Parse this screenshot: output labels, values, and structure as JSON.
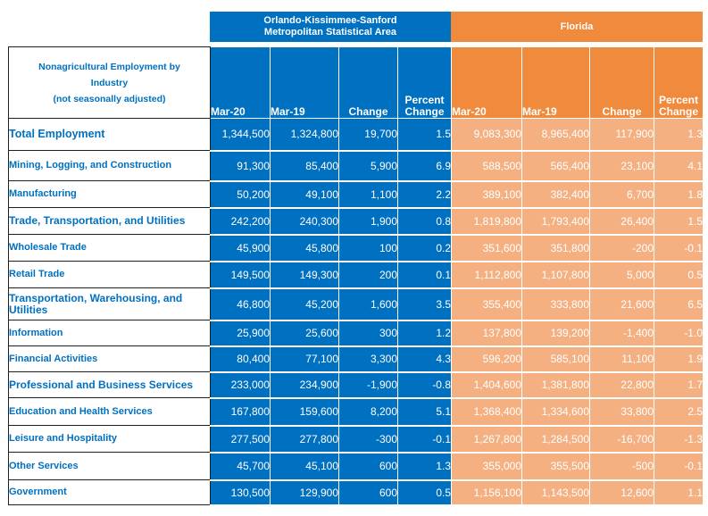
{
  "group_headers": {
    "orlando_line1": "Orlando-Kissimmee-Sanford",
    "orlando_line2": "Metropolitan Statistical Area",
    "florida": "Florida"
  },
  "table_header": {
    "label_line1": "Nonagricultural Employment by",
    "label_line2": "Industry",
    "label_line3": "(not seasonally adjusted)",
    "mar20": "Mar-20",
    "mar19": "Mar-19",
    "change": "Change",
    "percent_line1": "Percent",
    "percent_line2": "Change"
  },
  "rows": [
    {
      "label": "Total Employment",
      "o_mar20": "1,344,500",
      "o_mar19": "1,324,800",
      "o_change": "19,700",
      "o_pct": "1.5",
      "f_mar20": "9,083,300",
      "f_mar19": "8,965,400",
      "f_change": "117,900",
      "f_pct": "1.3"
    },
    {
      "label": "Mining, Logging, and Construction",
      "o_mar20": "91,300",
      "o_mar19": "85,400",
      "o_change": "5,900",
      "o_pct": "6.9",
      "f_mar20": "588,500",
      "f_mar19": "565,400",
      "f_change": "23,100",
      "f_pct": "4.1"
    },
    {
      "label": "Manufacturing",
      "o_mar20": "50,200",
      "o_mar19": "49,100",
      "o_change": "1,100",
      "o_pct": "2.2",
      "f_mar20": "389,100",
      "f_mar19": "382,400",
      "f_change": "6,700",
      "f_pct": "1.8"
    },
    {
      "label": "Trade, Transportation, and Utilities",
      "o_mar20": "242,200",
      "o_mar19": "240,300",
      "o_change": "1,900",
      "o_pct": "0.8",
      "f_mar20": "1,819,800",
      "f_mar19": "1,793,400",
      "f_change": "26,400",
      "f_pct": "1.5"
    },
    {
      "label": "Wholesale Trade",
      "o_mar20": "45,900",
      "o_mar19": "45,800",
      "o_change": "100",
      "o_pct": "0.2",
      "f_mar20": "351,600",
      "f_mar19": "351,800",
      "f_change": "-200",
      "f_pct": "-0.1"
    },
    {
      "label": "Retail Trade",
      "o_mar20": "149,500",
      "o_mar19": "149,300",
      "o_change": "200",
      "o_pct": "0.1",
      "f_mar20": "1,112,800",
      "f_mar19": "1,107,800",
      "f_change": "5,000",
      "f_pct": "0.5"
    },
    {
      "label": "Transportation, Warehousing, and Utilities",
      "o_mar20": "46,800",
      "o_mar19": "45,200",
      "o_change": "1,600",
      "o_pct": "3.5",
      "f_mar20": "355,400",
      "f_mar19": "333,800",
      "f_change": "21,600",
      "f_pct": "6.5"
    },
    {
      "label": "Information",
      "o_mar20": "25,900",
      "o_mar19": "25,600",
      "o_change": "300",
      "o_pct": "1.2",
      "f_mar20": "137,800",
      "f_mar19": "139,200",
      "f_change": "-1,400",
      "f_pct": "-1.0"
    },
    {
      "label": "Financial Activities",
      "o_mar20": "80,400",
      "o_mar19": "77,100",
      "o_change": "3,300",
      "o_pct": "4.3",
      "f_mar20": "596,200",
      "f_mar19": "585,100",
      "f_change": "11,100",
      "f_pct": "1.9"
    },
    {
      "label": "Professional and Business Services",
      "o_mar20": "233,000",
      "o_mar19": "234,900",
      "o_change": "-1,900",
      "o_pct": "-0.8",
      "f_mar20": "1,404,600",
      "f_mar19": "1,381,800",
      "f_change": "22,800",
      "f_pct": "1.7"
    },
    {
      "label": "Education and Health Services",
      "o_mar20": "167,800",
      "o_mar19": "159,600",
      "o_change": "8,200",
      "o_pct": "5.1",
      "f_mar20": "1,368,400",
      "f_mar19": "1,334,600",
      "f_change": "33,800",
      "f_pct": "2.5"
    },
    {
      "label": "Leisure and Hospitality",
      "o_mar20": "277,500",
      "o_mar19": "277,800",
      "o_change": "-300",
      "o_pct": "-0.1",
      "f_mar20": "1,267,800",
      "f_mar19": "1,284,500",
      "f_change": "-16,700",
      "f_pct": "-1.3"
    },
    {
      "label": "Other Services",
      "o_mar20": "45,700",
      "o_mar19": "45,100",
      "o_change": "600",
      "o_pct": "1.3",
      "f_mar20": "355,000",
      "f_mar19": "355,500",
      "f_change": "-500",
      "f_pct": "-0.1"
    },
    {
      "label": "Government",
      "o_mar20": "130,500",
      "o_mar19": "129,900",
      "o_change": "600",
      "o_pct": "0.5",
      "f_mar20": "1,156,100",
      "f_mar19": "1,143,500",
      "f_change": "12,600",
      "f_pct": "1.1"
    }
  ]
}
